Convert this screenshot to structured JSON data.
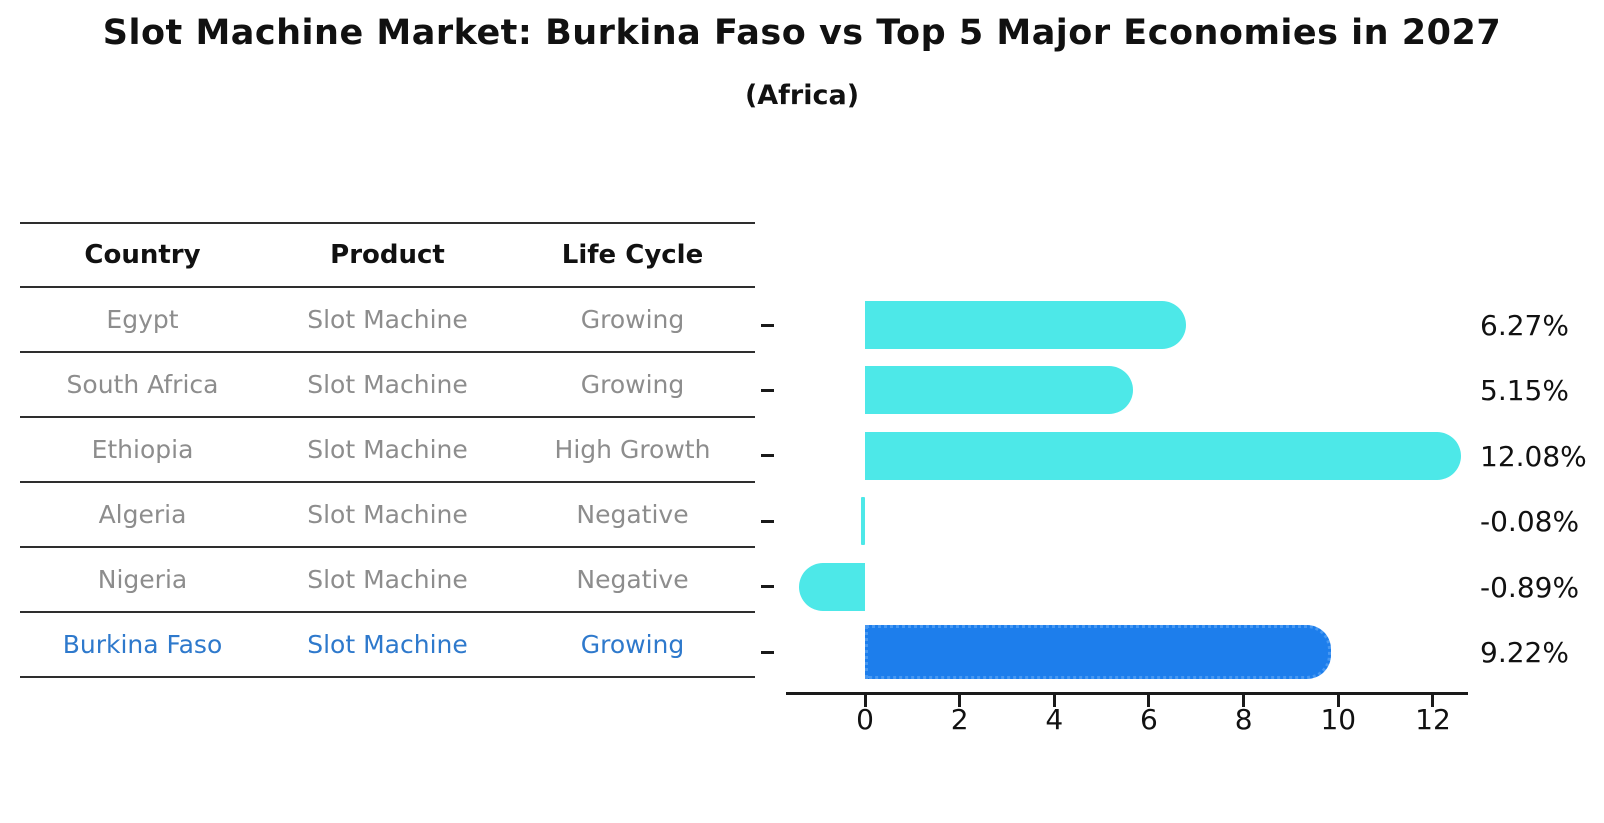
{
  "header": {
    "title": "Slot Machine Market: Burkina Faso vs Top 5 Major Economies in 2027",
    "subtitle": "(Africa)"
  },
  "table": {
    "columns": [
      "Country",
      "Product",
      "Life Cycle"
    ],
    "rows": [
      {
        "country": "Egypt",
        "product": "Slot Machine",
        "life_cycle": "Growing",
        "highlight": false
      },
      {
        "country": "South Africa",
        "product": "Slot Machine",
        "life_cycle": "Growing",
        "highlight": false
      },
      {
        "country": "Ethiopia",
        "product": "Slot Machine",
        "life_cycle": "High Growth",
        "highlight": false
      },
      {
        "country": "Algeria",
        "product": "Slot Machine",
        "life_cycle": "Negative",
        "highlight": false
      },
      {
        "country": "Nigeria",
        "product": "Slot Machine",
        "life_cycle": "Negative",
        "highlight": false
      },
      {
        "country": "Burkina Faso",
        "product": "Slot Machine",
        "life_cycle": "Growing",
        "highlight": true
      }
    ]
  },
  "chart_data": {
    "type": "bar",
    "orientation": "horizontal",
    "title": "Slot Machine Market: Burkina Faso vs Top 5 Major Economies in 2027",
    "subtitle": "(Africa)",
    "categories": [
      "Egypt",
      "South Africa",
      "Ethiopia",
      "Algeria",
      "Nigeria",
      "Burkina Faso"
    ],
    "values": [
      6.27,
      5.15,
      12.08,
      -0.08,
      -0.89,
      9.22
    ],
    "value_labels": [
      "6.27%",
      "5.15%",
      "12.08%",
      "-0.08%",
      "-0.89%",
      "9.22%"
    ],
    "xlabel": "",
    "ylabel": "",
    "xticks": [
      0,
      2,
      4,
      6,
      8,
      10,
      12
    ],
    "xlim": [
      -2.0,
      12.8
    ],
    "grid": false,
    "legend": false,
    "default_color": "#4DE8E8",
    "highlight_color": "#1D7EEC",
    "highlight_index": 5,
    "text_highlight_color": "#2e79cc"
  }
}
